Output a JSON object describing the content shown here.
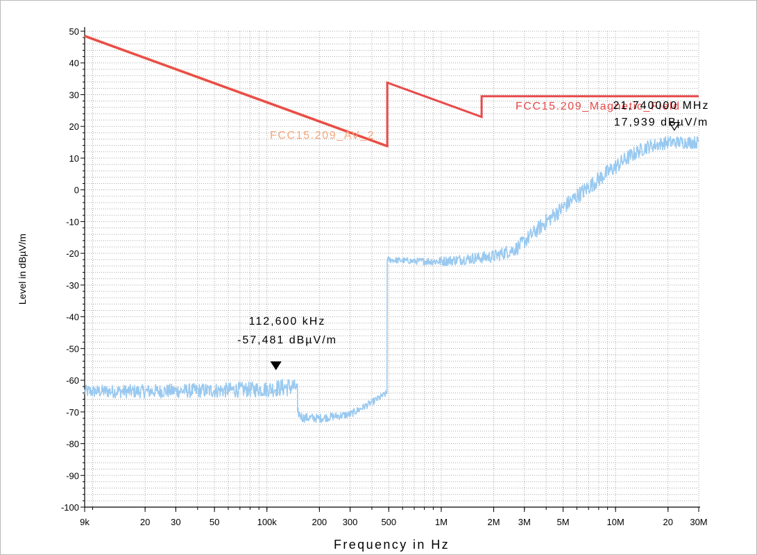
{
  "chart_data": {
    "type": "line",
    "xlabel": "Frequency in Hz",
    "ylabel": "Level in dBµV/m",
    "xscale": "log",
    "xlim": [
      9000,
      30000000
    ],
    "ylim": [
      -100,
      50
    ],
    "grid": true,
    "x_major_ticks": [
      {
        "value": 9000,
        "label": "9k"
      },
      {
        "value": 20000,
        "label": "20"
      },
      {
        "value": 30000,
        "label": "30"
      },
      {
        "value": 50000,
        "label": "50"
      },
      {
        "value": 100000,
        "label": "100k"
      },
      {
        "value": 200000,
        "label": "200"
      },
      {
        "value": 300000,
        "label": "300"
      },
      {
        "value": 500000,
        "label": "500"
      },
      {
        "value": 1000000,
        "label": "1M"
      },
      {
        "value": 2000000,
        "label": "2M"
      },
      {
        "value": 3000000,
        "label": "3M"
      },
      {
        "value": 5000000,
        "label": "5M"
      },
      {
        "value": 10000000,
        "label": "10M"
      },
      {
        "value": 20000000,
        "label": "20"
      },
      {
        "value": 30000000,
        "label": "30M"
      }
    ],
    "y_ticks": [
      {
        "value": 50,
        "label": "50"
      },
      {
        "value": 40,
        "label": "40"
      },
      {
        "value": 30,
        "label": "30"
      },
      {
        "value": 20,
        "label": "20"
      },
      {
        "value": 10,
        "label": "10"
      },
      {
        "value": 0,
        "label": "0"
      },
      {
        "value": -10,
        "label": "-10"
      },
      {
        "value": -20,
        "label": "-20"
      },
      {
        "value": -30,
        "label": "-30"
      },
      {
        "value": -40,
        "label": "-40"
      },
      {
        "value": -50,
        "label": "-50"
      },
      {
        "value": -60,
        "label": "-60"
      },
      {
        "value": -70,
        "label": "-70"
      },
      {
        "value": -80,
        "label": "-80"
      },
      {
        "value": -90,
        "label": "-90"
      },
      {
        "value": -100,
        "label": "-100"
      }
    ],
    "series": [
      {
        "name": "FCC15.209_AV_2",
        "kind": "limit",
        "color": "#f4a77c",
        "points": [
          [
            9000,
            48.5
          ],
          [
            490000,
            13.8
          ]
        ]
      },
      {
        "name": "FCC15.209_Magnetic_Field",
        "kind": "limit",
        "color": "#e84a4a",
        "points": [
          [
            9000,
            48.5
          ],
          [
            490000,
            13.8
          ],
          [
            490000,
            33.8
          ],
          [
            1705000,
            23.0
          ],
          [
            1705000,
            29.5
          ],
          [
            30000000,
            29.5
          ]
        ]
      },
      {
        "kind": "measurement",
        "color": "#99c9f0",
        "points": [
          [
            9000,
            -63.5
          ],
          [
            20000,
            -63.5
          ],
          [
            50000,
            -63.2
          ],
          [
            100000,
            -62.8
          ],
          [
            140000,
            -62.0
          ],
          [
            150000,
            -62.5
          ],
          [
            150000,
            -70.0
          ],
          [
            160000,
            -71.8
          ],
          [
            200000,
            -72.0
          ],
          [
            300000,
            -70.8
          ],
          [
            400000,
            -67.0
          ],
          [
            490000,
            -64.0
          ],
          [
            490000,
            -22.0
          ],
          [
            700000,
            -22.5
          ],
          [
            1000000,
            -22.5
          ],
          [
            2000000,
            -21.0
          ],
          [
            2700000,
            -18.5
          ],
          [
            4000000,
            -10.0
          ],
          [
            6000000,
            -2.0
          ],
          [
            9000000,
            5.5
          ],
          [
            12000000,
            10.5
          ],
          [
            15000000,
            13.5
          ],
          [
            20000000,
            15.0
          ],
          [
            30000000,
            15.0
          ]
        ],
        "band_height": [
          [
            9000,
            4
          ],
          [
            100000,
            5
          ],
          [
            140000,
            6
          ],
          [
            150000,
            3
          ],
          [
            490000,
            2
          ],
          [
            700000,
            2
          ],
          [
            1000000,
            3
          ],
          [
            2000000,
            4
          ],
          [
            4000000,
            5
          ],
          [
            10000000,
            5
          ],
          [
            20000000,
            4
          ],
          [
            30000000,
            4
          ]
        ]
      }
    ],
    "limit_labels": [
      {
        "text": "FCC15.209_AV_2",
        "color": "#f4a77c"
      },
      {
        "text": "FCC15.209_Magnetic_Field",
        "color": "#e84a4a"
      }
    ],
    "markers": [
      {
        "freq_label": "112,600 kHz",
        "level_label": "-57,481 dBµV/m",
        "x": 112600,
        "y": -57.481,
        "style": "filled"
      },
      {
        "freq_label": "21,740000 MHz",
        "level_label": "17,939 dBµV/m",
        "x": 21740000,
        "y": 17.939,
        "style": "hollow"
      }
    ]
  }
}
